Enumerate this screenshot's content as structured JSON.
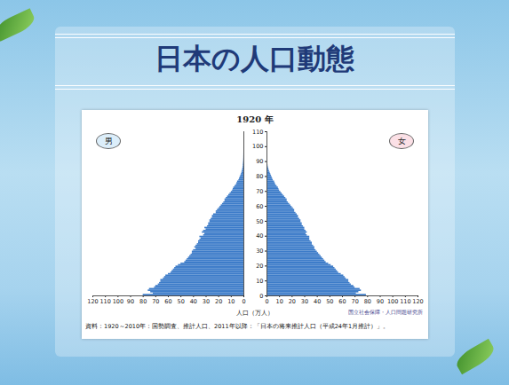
{
  "slide_title": "日本の人口動態",
  "chart_data": {
    "type": "population_pyramid",
    "title": "1920 年",
    "orientation": "horizontal",
    "xlabel": "人口（万人）",
    "source": "資料：1920～2010年：国勢調査、推計人口、2011年以降：「日本の将来推計人口（平成24年1月推計）」。",
    "credit": "国立社会保障・人口問題研究所",
    "ages": [
      0,
      1,
      2,
      3,
      4,
      5,
      6,
      7,
      8,
      9,
      10,
      11,
      12,
      13,
      14,
      15,
      16,
      17,
      18,
      19,
      20,
      21,
      22,
      23,
      24,
      25,
      26,
      27,
      28,
      29,
      30,
      31,
      32,
      33,
      34,
      35,
      36,
      37,
      38,
      39,
      40,
      41,
      42,
      43,
      44,
      45,
      46,
      47,
      48,
      49,
      50,
      51,
      52,
      53,
      54,
      55,
      56,
      57,
      58,
      59,
      60,
      61,
      62,
      63,
      64,
      65,
      66,
      67,
      68,
      69,
      70,
      71,
      72,
      73,
      74,
      75,
      76,
      77,
      78,
      79,
      80,
      81,
      82,
      83,
      84,
      85,
      86,
      87,
      88,
      89,
      90,
      91,
      92,
      93,
      94,
      95,
      96,
      97,
      98,
      99
    ],
    "series": [
      {
        "name": "男",
        "color": "#3d7cc9",
        "values": [
          80,
          72,
          74,
          76,
          75,
          71,
          70,
          68,
          67,
          66,
          66,
          64,
          63,
          62,
          60,
          58,
          57,
          56,
          55,
          54,
          52,
          50,
          47,
          46,
          45,
          44,
          43,
          42,
          41,
          41,
          40,
          38,
          39,
          38,
          37,
          36,
          36,
          35,
          34,
          35,
          32,
          31,
          33,
          32,
          30,
          31,
          29,
          28,
          28,
          27,
          27,
          26,
          25,
          25,
          24,
          22,
          22,
          21,
          20,
          19,
          18,
          17,
          16,
          15,
          15,
          14,
          13,
          12,
          11,
          10,
          9,
          8.5,
          8,
          7,
          6,
          5.5,
          5,
          4,
          3.5,
          3,
          2.5,
          2,
          1.6,
          1.3,
          1,
          0.8,
          0.6,
          0.5,
          0.4,
          0.3,
          0.2,
          0.15,
          0.1,
          0.08,
          0.05,
          0.03,
          0.02,
          0.01,
          0.01,
          0.01
        ]
      },
      {
        "name": "女",
        "color": "#3d7cc9",
        "values": [
          79,
          71,
          73,
          75,
          74,
          70,
          69,
          67,
          66,
          65,
          65,
          63,
          62,
          61,
          59,
          57,
          56,
          55,
          54,
          53,
          51,
          49,
          47,
          46,
          45,
          44,
          43,
          42,
          41,
          40,
          39,
          38,
          38,
          37,
          36,
          36,
          35,
          34,
          34,
          34,
          32,
          31,
          32,
          31,
          30,
          30,
          29,
          28,
          28,
          27,
          27,
          26,
          25,
          25,
          24,
          23,
          22,
          22,
          21,
          20,
          19,
          18,
          17,
          16,
          16,
          15,
          14,
          13,
          12,
          11,
          10,
          9.5,
          9,
          8,
          7,
          6.5,
          6,
          5,
          4.5,
          4,
          3.5,
          3,
          2.5,
          2,
          1.6,
          1.3,
          1,
          0.8,
          0.6,
          0.5,
          0.4,
          0.3,
          0.2,
          0.15,
          0.1,
          0.07,
          0.05,
          0.03,
          0.02,
          0.01
        ]
      }
    ],
    "xlim": [
      0,
      120
    ],
    "xticks": [
      0,
      10,
      20,
      30,
      40,
      50,
      60,
      70,
      80,
      90,
      100,
      110,
      120
    ],
    "ylim": [
      0,
      110
    ],
    "yticks": [
      0,
      10,
      20,
      30,
      40,
      50,
      60,
      70,
      80,
      90,
      100,
      110
    ]
  }
}
